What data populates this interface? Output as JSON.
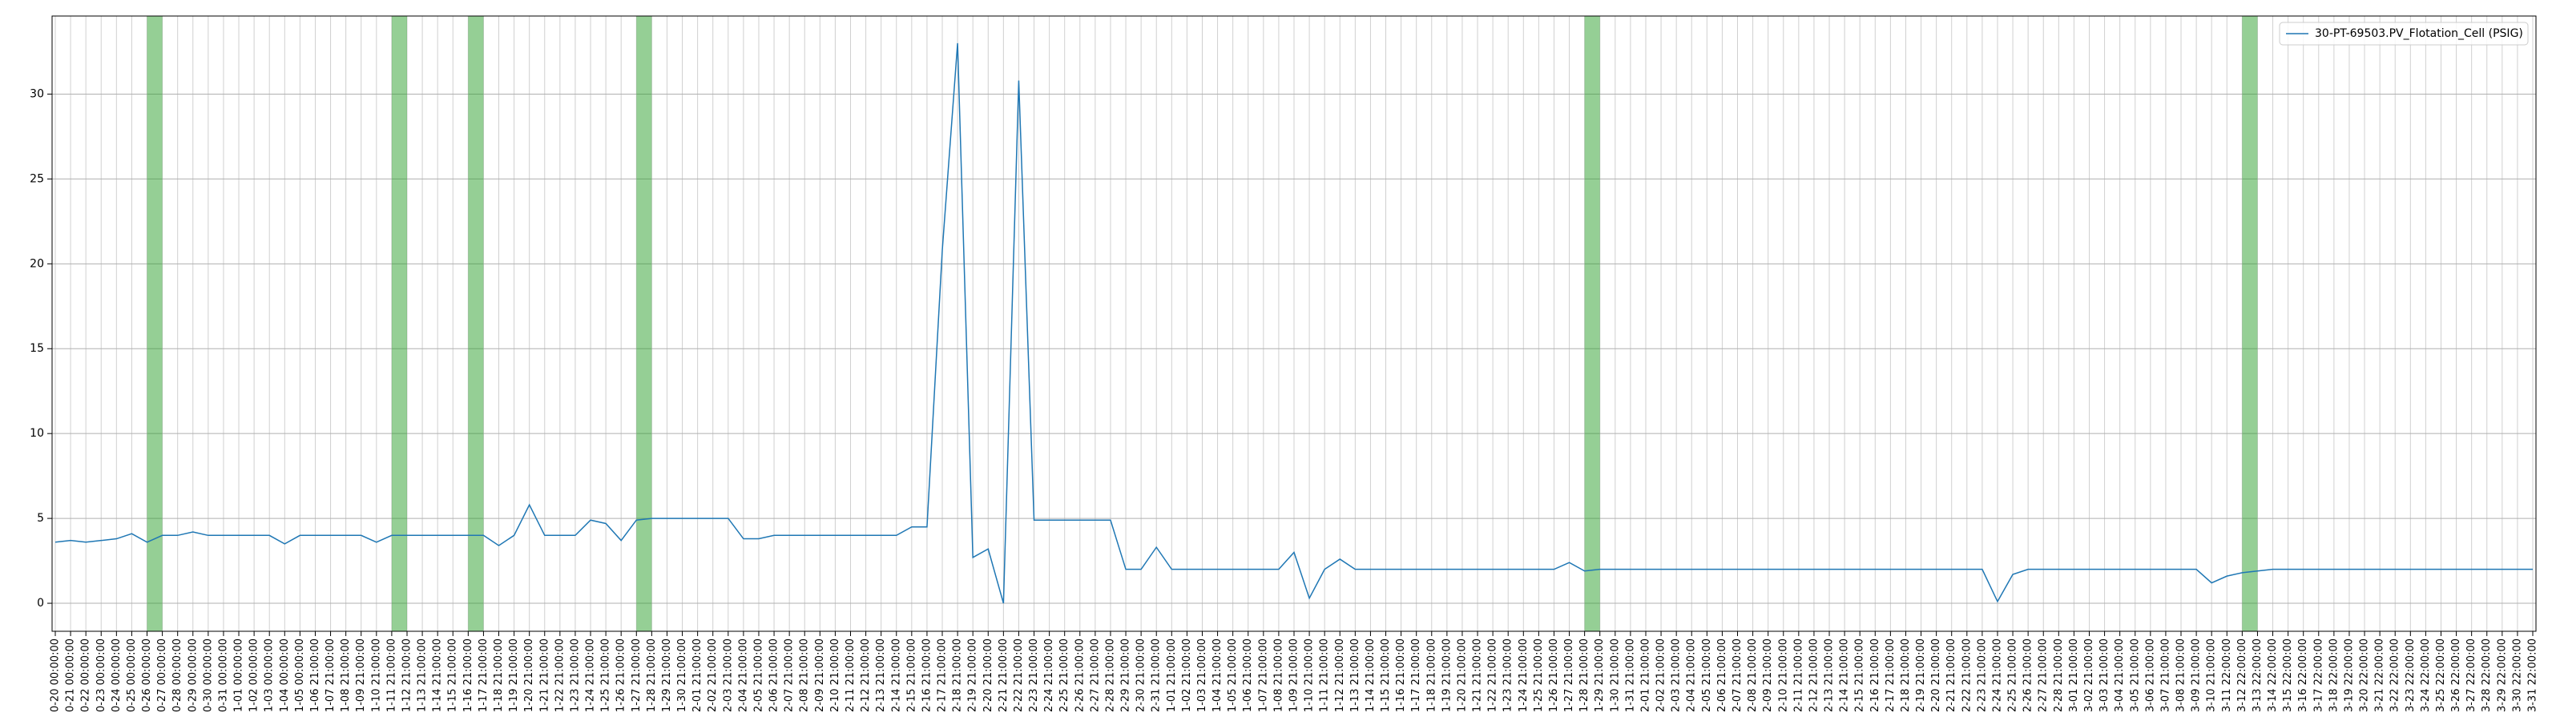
{
  "chart_data": {
    "type": "line",
    "categories": [
      "0-20 00:00:00",
      "0-21 00:00:00",
      "0-22 00:00:00",
      "0-23 00:00:00",
      "0-24 00:00:00",
      "0-25 00:00:00",
      "0-26 00:00:00",
      "0-27 00:00:00",
      "0-28 00:00:00",
      "0-29 00:00:00",
      "0-30 00:00:00",
      "0-31 00:00:00",
      "1-01 00:00:00",
      "1-02 00:00:00",
      "1-03 00:00:00",
      "1-04 00:00:00",
      "1-05 00:00:00",
      "1-06 21:00:00",
      "1-07 21:00:00",
      "1-08 21:00:00",
      "1-09 21:00:00",
      "1-10 21:00:00",
      "1-11 21:00:00",
      "1-12 21:00:00",
      "1-13 21:00:00",
      "1-14 21:00:00",
      "1-15 21:00:00",
      "1-16 21:00:00",
      "1-17 21:00:00",
      "1-18 21:00:00",
      "1-19 21:00:00",
      "1-20 21:00:00",
      "1-21 21:00:00",
      "1-22 21:00:00",
      "1-23 21:00:00",
      "1-24 21:00:00",
      "1-25 21:00:00",
      "1-26 21:00:00",
      "1-27 21:00:00",
      "1-28 21:00:00",
      "1-29 21:00:00",
      "1-30 21:00:00",
      "2-01 21:00:00",
      "2-02 21:00:00",
      "2-03 21:00:00",
      "2-04 21:00:00",
      "2-05 21:00:00",
      "2-06 21:00:00",
      "2-07 21:00:00",
      "2-08 21:00:00",
      "2-09 21:00:00",
      "2-10 21:00:00",
      "2-11 21:00:00",
      "2-12 21:00:00",
      "2-13 21:00:00",
      "2-14 21:00:00",
      "2-15 21:00:00",
      "2-16 21:00:00",
      "2-17 21:00:00",
      "2-18 21:00:00",
      "2-19 21:00:00",
      "2-20 21:00:00",
      "2-21 21:00:00",
      "2-22 21:00:00",
      "2-23 21:00:00",
      "2-24 21:00:00",
      "2-25 21:00:00",
      "2-26 21:00:00",
      "2-27 21:00:00",
      "2-28 21:00:00",
      "2-29 21:00:00",
      "2-30 21:00:00",
      "2-31 21:00:00",
      "1-01 21:00:00",
      "1-02 21:00:00",
      "1-03 21:00:00",
      "1-04 21:00:00",
      "1-05 21:00:00",
      "1-06 21:00:00",
      "1-07 21:00:00",
      "1-08 21:00:00",
      "1-09 21:00:00",
      "1-10 21:00:00",
      "1-11 21:00:00",
      "1-12 21:00:00",
      "1-13 21:00:00",
      "1-14 21:00:00",
      "1-15 21:00:00",
      "1-16 21:00:00",
      "1-17 21:00:00",
      "1-18 21:00:00",
      "1-19 21:00:00",
      "1-20 21:00:00",
      "1-21 21:00:00",
      "1-22 21:00:00",
      "1-23 21:00:00",
      "1-24 21:00:00",
      "1-25 21:00:00",
      "1-26 21:00:00",
      "1-27 21:00:00",
      "1-28 21:00:00",
      "1-29 21:00:00",
      "1-30 21:00:00",
      "1-31 21:00:00",
      "2-01 21:00:00",
      "2-02 21:00:00",
      "2-03 21:00:00",
      "2-04 21:00:00",
      "2-05 21:00:00",
      "2-06 21:00:00",
      "2-07 21:00:00",
      "2-08 21:00:00",
      "2-09 21:00:00",
      "2-10 21:00:00",
      "2-11 21:00:00",
      "2-12 21:00:00",
      "2-13 21:00:00",
      "2-14 21:00:00",
      "2-15 21:00:00",
      "2-16 21:00:00",
      "2-17 21:00:00",
      "2-18 21:00:00",
      "2-19 21:00:00",
      "2-20 21:00:00",
      "2-21 21:00:00",
      "2-22 21:00:00",
      "2-23 21:00:00",
      "2-24 21:00:00",
      "2-25 21:00:00",
      "2-26 21:00:00",
      "2-27 21:00:00",
      "2-28 21:00:00",
      "3-01 21:00:00",
      "3-02 21:00:00",
      "3-03 21:00:00",
      "3-04 21:00:00",
      "3-05 21:00:00",
      "3-06 21:00:00",
      "3-07 21:00:00",
      "3-08 21:00:00",
      "3-09 21:00:00",
      "3-10 21:00:00",
      "3-11 22:00:00",
      "3-12 22:00:00",
      "3-13 22:00:00",
      "3-14 22:00:00",
      "3-15 22:00:00",
      "3-16 22:00:00",
      "3-17 22:00:00",
      "3-18 22:00:00",
      "3-19 22:00:00",
      "3-20 22:00:00",
      "3-21 22:00:00",
      "3-22 22:00:00",
      "3-23 22:00:00",
      "3-24 22:00:00",
      "3-25 22:00:00",
      "3-26 22:00:00",
      "3-27 22:00:00",
      "3-28 22:00:00",
      "3-29 22:00:00",
      "3-30 22:00:00",
      "3-31 22:00:00"
    ],
    "series": [
      {
        "name": "30-PT-69503.PV_Flotation_Cell (PSIG)",
        "color": "#1f77b4",
        "values": [
          3.6,
          3.7,
          3.6,
          3.7,
          3.8,
          4.1,
          3.6,
          4.0,
          4.0,
          4.2,
          4.0,
          4.0,
          4.0,
          4.0,
          4.0,
          3.5,
          4.0,
          4.0,
          4.0,
          4.0,
          4.0,
          3.6,
          4.0,
          4.0,
          4.0,
          4.0,
          4.0,
          4.0,
          4.0,
          3.4,
          4.0,
          5.8,
          4.0,
          4.0,
          4.0,
          4.9,
          4.7,
          3.7,
          4.9,
          5.0,
          5.0,
          5.0,
          5.0,
          5.0,
          5.0,
          3.8,
          3.8,
          4.0,
          4.0,
          4.0,
          4.0,
          4.0,
          4.0,
          4.0,
          4.0,
          4.0,
          4.5,
          4.5,
          20.8,
          33.0,
          2.7,
          3.2,
          0.0,
          30.8,
          4.9,
          4.9,
          4.9,
          4.9,
          4.9,
          4.9,
          2.0,
          2.0,
          3.3,
          2.0,
          2.0,
          2.0,
          2.0,
          2.0,
          2.0,
          2.0,
          2.0,
          3.0,
          0.3,
          2.0,
          2.6,
          2.0,
          2.0,
          2.0,
          2.0,
          2.0,
          2.0,
          2.0,
          2.0,
          2.0,
          2.0,
          2.0,
          2.0,
          2.0,
          2.0,
          2.4,
          1.9,
          2.0,
          2.0,
          2.0,
          2.0,
          2.0,
          2.0,
          2.0,
          2.0,
          2.0,
          2.0,
          2.0,
          2.0,
          2.0,
          2.0,
          2.0,
          2.0,
          2.0,
          2.0,
          2.0,
          2.0,
          2.0,
          2.0,
          2.0,
          2.0,
          2.0,
          2.0,
          0.1,
          1.7,
          2.0,
          2.0,
          2.0,
          2.0,
          2.0,
          2.0,
          2.0,
          2.0,
          2.0,
          2.0,
          2.0,
          2.0,
          1.2,
          1.6,
          1.8,
          1.9,
          2.0,
          2.0,
          2.0,
          2.0,
          2.0,
          2.0,
          2.0,
          2.0,
          2.0,
          2.0,
          2.0,
          2.0,
          2.0,
          2.0,
          2.0,
          2.0,
          2.0,
          2.0
        ]
      }
    ],
    "shaded_spans": [
      [
        6,
        7
      ],
      [
        22,
        23
      ],
      [
        27,
        28
      ],
      [
        38,
        39
      ],
      [
        100,
        101
      ],
      [
        143,
        144
      ]
    ],
    "shade_color": "#2ca02c",
    "ylim": [
      -1.65,
      34.6
    ],
    "yticks": [
      0,
      5,
      10,
      15,
      20,
      25,
      30
    ],
    "grid": true,
    "legend": "upper right"
  }
}
